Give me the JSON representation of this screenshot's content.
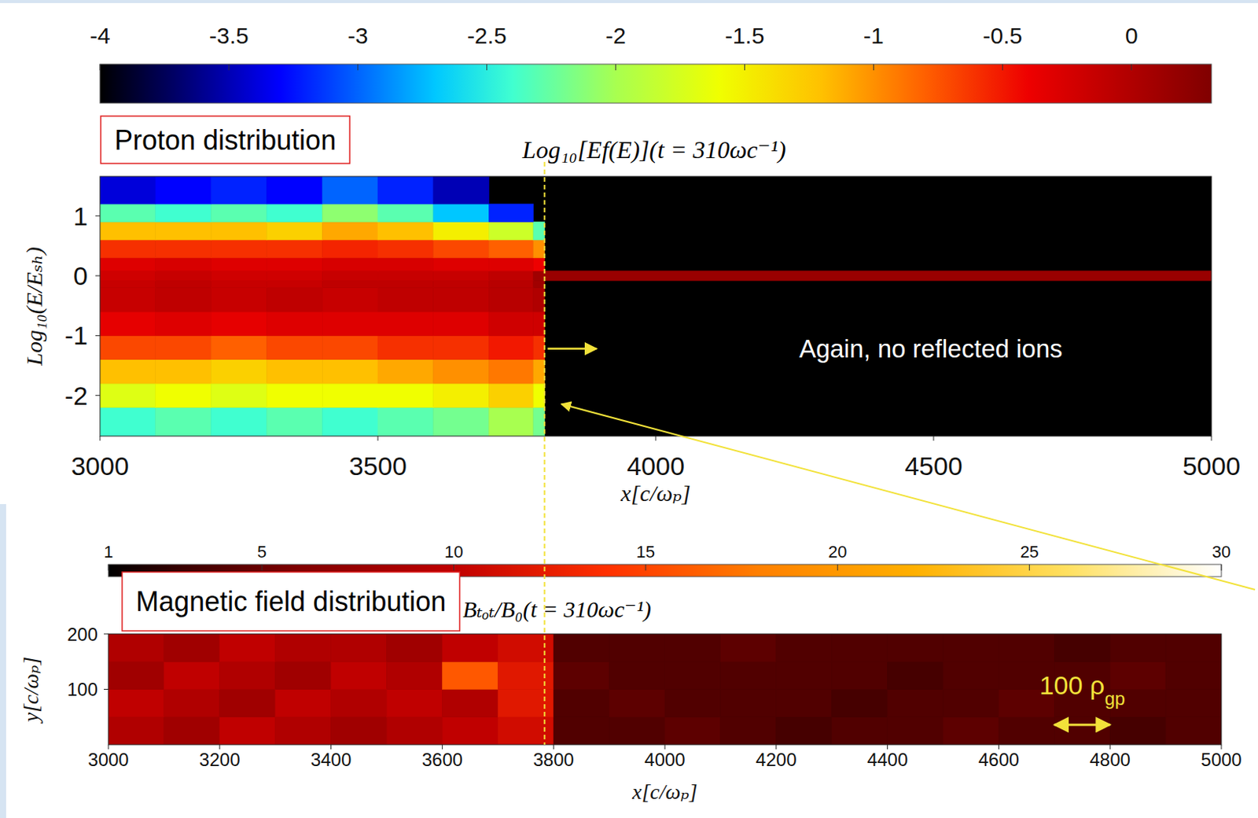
{
  "chart_data": [
    {
      "type": "heatmap",
      "label": "Proton distribution",
      "title": "Log₁₀[Ef(E)](t = 310ωc⁻¹)",
      "x_label": "x[c/ωₚ]",
      "y_label": "Log₁₀(E/Eₛₕ)",
      "xlim": [
        3000,
        5000
      ],
      "xticks": [
        3000,
        3500,
        4000,
        4500,
        5000
      ],
      "ylim": [
        -2.68,
        1.66
      ],
      "yticks": [
        -2,
        -1,
        0,
        1
      ],
      "x_bins": [
        3000,
        3100,
        3200,
        3300,
        3400,
        3500,
        3600,
        3700,
        3780,
        3800,
        5000
      ],
      "y_bins": [
        -2.68,
        -2.2,
        -1.8,
        -1.4,
        -1.0,
        -0.6,
        -0.2,
        -0.08,
        0.08,
        0.3,
        0.6,
        0.9,
        1.2,
        1.66
      ],
      "cells": [
        [
          -2.4,
          -2.3,
          -2.4,
          -2.3,
          -2.4,
          -2.3,
          -2.2,
          -2.0,
          -2.2,
          null
        ],
        [
          -1.7,
          -1.6,
          -1.7,
          -1.6,
          -1.6,
          -1.6,
          -1.5,
          -1.3,
          -1.6,
          null
        ],
        [
          -1.2,
          -1.2,
          -1.3,
          -1.2,
          -1.2,
          -1.1,
          -1.0,
          -0.9,
          -1.1,
          null
        ],
        [
          -0.7,
          -0.7,
          -0.8,
          -0.7,
          -0.7,
          -0.6,
          -0.6,
          -0.5,
          -0.6,
          null
        ],
        [
          -0.35,
          -0.3,
          -0.35,
          -0.3,
          -0.3,
          -0.3,
          -0.3,
          -0.2,
          -0.2,
          null
        ],
        [
          -0.15,
          -0.1,
          -0.15,
          -0.1,
          -0.15,
          -0.1,
          -0.1,
          -0.05,
          0,
          null
        ],
        [
          -0.15,
          -0.1,
          -0.15,
          -0.15,
          -0.1,
          -0.1,
          -0.1,
          -0.05,
          0.1,
          null
        ],
        [
          -0.2,
          -0.15,
          -0.2,
          -0.2,
          -0.15,
          -0.15,
          -0.15,
          -0.1,
          0.1,
          0.15
        ],
        [
          -0.3,
          -0.25,
          -0.3,
          -0.3,
          -0.25,
          -0.25,
          -0.3,
          -0.3,
          -0.4,
          null
        ],
        [
          -0.6,
          -0.6,
          -0.6,
          -0.6,
          -0.55,
          -0.6,
          -0.7,
          -0.8,
          -1.0,
          null
        ],
        [
          -1.2,
          -1.2,
          -1.2,
          -1.3,
          -1.1,
          -1.2,
          -1.5,
          -1.8,
          -2.3,
          null
        ],
        [
          -2.3,
          -2.4,
          -2.3,
          -2.4,
          -2.1,
          -2.3,
          -2.7,
          -3.2,
          null,
          null
        ],
        [
          -3.4,
          -3.3,
          -3.2,
          -3.3,
          -3.0,
          -3.2,
          -3.5,
          null,
          null,
          null
        ]
      ],
      "colorbar": {
        "range": [
          -4,
          0.31
        ],
        "ticks": [
          -4,
          -3.5,
          -3,
          -2.5,
          -2,
          -1.5,
          -1,
          -0.5,
          0
        ]
      },
      "shock_x": 3800,
      "annotations": [
        {
          "text": "Again, no reflected ions",
          "x": 4495,
          "y": -1.22
        }
      ]
    },
    {
      "type": "heatmap",
      "label": "Magnetic field distribution",
      "title": "Bₜₒₜ/B₀(t = 310ωc⁻¹)",
      "x_label": "x[c/ωₚ]",
      "y_label": "y[c/ωₚ]",
      "xlim": [
        3000,
        5000
      ],
      "xticks": [
        3000,
        3200,
        3400,
        3600,
        3800,
        4000,
        4200,
        4400,
        4600,
        4800,
        5000
      ],
      "ylim": [
        0,
        200
      ],
      "yticks": [
        100,
        200
      ],
      "x_bins": [
        3000,
        3100,
        3200,
        3300,
        3400,
        3500,
        3600,
        3700,
        3800,
        3900,
        4000,
        4100,
        4200,
        4300,
        4400,
        4500,
        4600,
        4700,
        4800,
        4900,
        5000
      ],
      "y_bins": [
        0,
        50,
        100,
        150,
        200
      ],
      "cells": [
        [
          9,
          8,
          10,
          9,
          8,
          9,
          10,
          11,
          4,
          4,
          4.5,
          4,
          3.5,
          4,
          4,
          4.5,
          4,
          4,
          3.5,
          4
        ],
        [
          10,
          9,
          8,
          10,
          9,
          10,
          9,
          12,
          4,
          4.5,
          4,
          4,
          4,
          3.5,
          4,
          4,
          4.5,
          4,
          4,
          4
        ],
        [
          8,
          10,
          9,
          8,
          10,
          9,
          16,
          12,
          4.5,
          4,
          4,
          4,
          4,
          4,
          3.5,
          4,
          4,
          4,
          4.5,
          4
        ],
        [
          9,
          8,
          10,
          9,
          9,
          8,
          10,
          11,
          4,
          4,
          4,
          4.5,
          4,
          4,
          4,
          4,
          4,
          3.5,
          4,
          4
        ]
      ],
      "colorbar": {
        "range": [
          1,
          30
        ],
        "ticks": [
          1,
          5,
          10,
          15,
          20,
          25,
          30
        ]
      },
      "shock_x": 3800,
      "scale_bar": {
        "text": "100 ρ",
        "subscript": "gp",
        "x": [
          4700,
          4800
        ],
        "y": 36
      }
    }
  ]
}
